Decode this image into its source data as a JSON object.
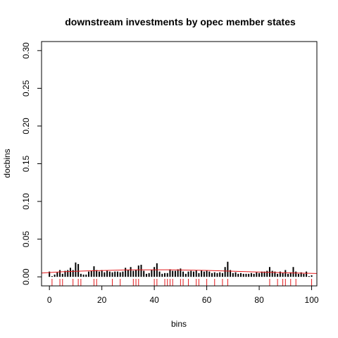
{
  "chart_data": {
    "type": "bar",
    "title": "downstream investments by opec member states",
    "xlabel": "bins",
    "ylabel": "docbins",
    "xlim": [
      -3,
      102
    ],
    "ylim": [
      -0.012,
      0.312
    ],
    "x_ticks": [
      0,
      20,
      40,
      60,
      80,
      100
    ],
    "x_tick_labels": [
      "0",
      "20",
      "40",
      "60",
      "80",
      "100"
    ],
    "y_ticks": [
      0.0,
      0.05,
      0.1,
      0.15,
      0.2,
      0.25,
      0.3
    ],
    "y_tick_labels": [
      "0.00",
      "0.05",
      "0.10",
      "0.15",
      "0.20",
      "0.25",
      "0.30"
    ],
    "bar_color": "#000000",
    "curve_color": "#e41a1c",
    "rug_color": "#e41a1c",
    "bins": [
      0,
      1,
      2,
      3,
      4,
      5,
      6,
      7,
      8,
      9,
      10,
      11,
      12,
      13,
      14,
      15,
      16,
      17,
      18,
      19,
      20,
      21,
      22,
      23,
      24,
      25,
      26,
      27,
      28,
      29,
      30,
      31,
      32,
      33,
      34,
      35,
      36,
      37,
      38,
      39,
      40,
      41,
      42,
      43,
      44,
      45,
      46,
      47,
      48,
      49,
      50,
      51,
      52,
      53,
      54,
      55,
      56,
      57,
      58,
      59,
      60,
      61,
      62,
      63,
      64,
      65,
      66,
      67,
      68,
      69,
      70,
      71,
      72,
      73,
      74,
      75,
      76,
      77,
      78,
      79,
      80,
      81,
      82,
      83,
      84,
      85,
      86,
      87,
      88,
      89,
      90,
      91,
      92,
      93,
      94,
      95,
      96,
      97,
      98,
      99,
      100
    ],
    "values": [
      0.007,
      0.001,
      0.003,
      0.006,
      0.009,
      0.004,
      0.008,
      0.009,
      0.012,
      0.009,
      0.019,
      0.017,
      0.004,
      0.003,
      0.003,
      0.007,
      0.008,
      0.014,
      0.009,
      0.007,
      0.009,
      0.006,
      0.008,
      0.007,
      0.006,
      0.007,
      0.007,
      0.006,
      0.007,
      0.012,
      0.009,
      0.013,
      0.008,
      0.009,
      0.015,
      0.016,
      0.008,
      0.004,
      0.005,
      0.009,
      0.013,
      0.018,
      0.007,
      0.004,
      0.005,
      0.005,
      0.01,
      0.008,
      0.008,
      0.01,
      0.011,
      0.007,
      0.004,
      0.007,
      0.008,
      0.007,
      0.009,
      0.005,
      0.009,
      0.007,
      0.008,
      0.007,
      0.005,
      0.006,
      0.005,
      0.006,
      0.005,
      0.013,
      0.02,
      0.009,
      0.005,
      0.006,
      0.004,
      0.005,
      0.004,
      0.004,
      0.004,
      0.005,
      0.004,
      0.006,
      0.005,
      0.007,
      0.007,
      0.008,
      0.013,
      0.008,
      0.007,
      0.004,
      0.007,
      0.005,
      0.009,
      0.004,
      0.006,
      0.013,
      0.007,
      0.004,
      0.006,
      0.004,
      0.007,
      0.001,
      0.002
    ],
    "density_curve": {
      "x": [
        -3,
        5,
        15,
        30,
        45,
        60,
        75,
        90,
        102
      ],
      "y": [
        0.005,
        0.0068,
        0.008,
        0.0092,
        0.0094,
        0.0085,
        0.007,
        0.0054,
        0.0044
      ]
    },
    "rug": [
      1,
      4,
      5,
      9,
      11,
      12,
      17,
      18,
      24,
      27,
      32,
      33,
      34,
      40,
      41,
      44,
      45,
      46,
      47,
      50,
      51,
      53,
      56,
      57,
      60,
      63,
      66,
      68,
      84,
      87,
      89,
      90,
      92,
      94,
      100
    ]
  }
}
